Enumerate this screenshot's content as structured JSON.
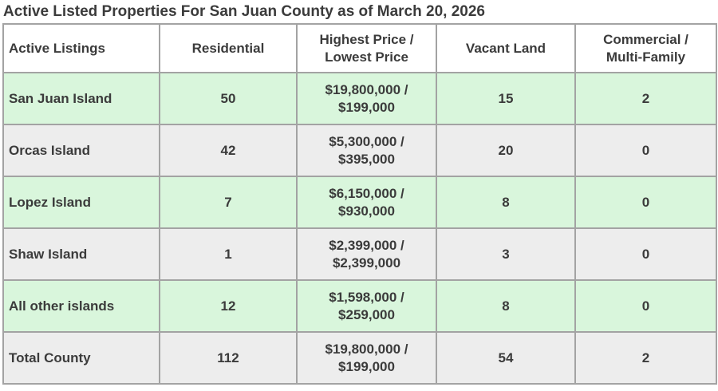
{
  "title": "Active Listed Properties For San Juan County as of March 20, 2026",
  "colors": {
    "row_green": "#d9f6dc",
    "row_gray": "#ededed",
    "border": "#a3a3a3",
    "text": "#3b3b3b",
    "header_bg": "#ffffff"
  },
  "table": {
    "columns": {
      "listings": "Active Listings",
      "residential": "Residential",
      "price": "Highest Price /\nLowest Price",
      "vacant": "Vacant Land",
      "commercial": "Commercial /\nMulti-Family"
    },
    "rows": [
      {
        "name": "San Juan Island",
        "residential": "50",
        "price": "$19,800,000 /\n$199,000",
        "vacant": "15",
        "commercial": "2"
      },
      {
        "name": "Orcas Island",
        "residential": "42",
        "price": "$5,300,000 /\n$395,000",
        "vacant": "20",
        "commercial": "0"
      },
      {
        "name": "Lopez Island",
        "residential": "7",
        "price": "$6,150,000 /\n$930,000",
        "vacant": "8",
        "commercial": "0"
      },
      {
        "name": "Shaw Island",
        "residential": "1",
        "price": "$2,399,000  /\n$2,399,000",
        "vacant": "3",
        "commercial": "0"
      },
      {
        "name": "All other islands",
        "residential": "12",
        "price": "$1,598,000 /\n$259,000",
        "vacant": "8",
        "commercial": "0"
      },
      {
        "name": "Total County",
        "residential": "112",
        "price": "$19,800,000 /\n$199,000",
        "vacant": "54",
        "commercial": "2"
      }
    ]
  },
  "chart_data": {
    "type": "table",
    "title": "Active Listed Properties For San Juan County as of March 20, 2026",
    "categories": [
      "San Juan Island",
      "Orcas Island",
      "Lopez Island",
      "Shaw Island",
      "All other islands",
      "Total County"
    ],
    "series": [
      {
        "name": "Residential",
        "values": [
          50,
          42,
          7,
          1,
          12,
          112
        ]
      },
      {
        "name": "Vacant Land",
        "values": [
          15,
          20,
          8,
          3,
          8,
          54
        ]
      },
      {
        "name": "Commercial / Multi-Family",
        "values": [
          2,
          0,
          0,
          0,
          0,
          2
        ]
      },
      {
        "name": "Highest Price",
        "values": [
          19800000,
          5300000,
          6150000,
          2399000,
          1598000,
          19800000
        ]
      },
      {
        "name": "Lowest Price",
        "values": [
          199000,
          395000,
          930000,
          2399000,
          259000,
          199000
        ]
      }
    ]
  }
}
